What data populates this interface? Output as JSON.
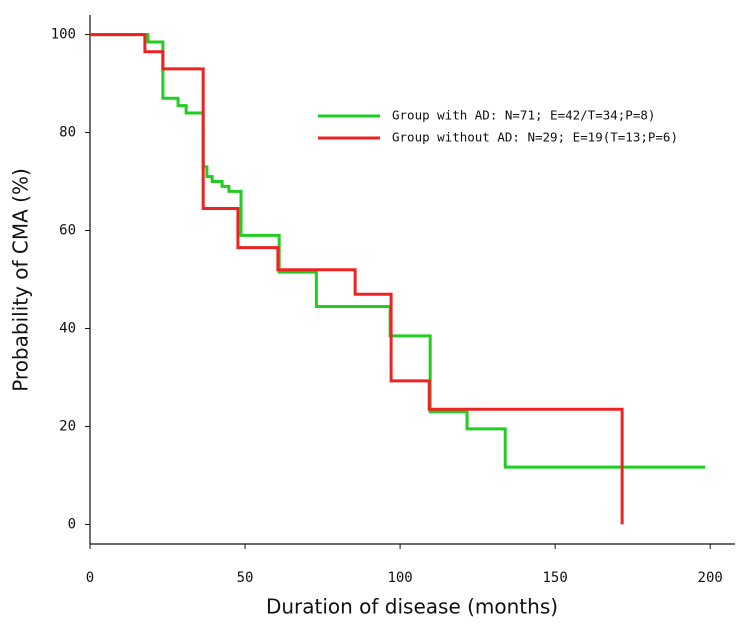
{
  "chart_data": {
    "type": "line",
    "step": "post",
    "xlabel": "Duration of disease (months)",
    "ylabel": "Probability of CMA (%)",
    "xlim": [
      0,
      208
    ],
    "ylim": [
      -4,
      104
    ],
    "xticks": [
      0,
      50,
      100,
      150,
      200
    ],
    "yticks": [
      0,
      20,
      40,
      60,
      80,
      100
    ],
    "legend": "upper right",
    "series": [
      {
        "name": "Group with AD: N=71; E=42/T=34;P=8)",
        "color": "#22cc22",
        "x": [
          0,
          18.7,
          23.5,
          28.4,
          31,
          36.5,
          37.7,
          39.4,
          42.6,
          44.8,
          48.7,
          61,
          73,
          96.8,
          109.7,
          121.6,
          133.9,
          198.4
        ],
        "values": [
          100,
          98.5,
          87,
          85.5,
          84,
          73,
          71,
          70,
          69,
          68,
          59,
          51.5,
          44.5,
          38.5,
          23,
          19.5,
          11.7,
          11.7
        ]
      },
      {
        "name": "Group without AD: N=29; E=19(T=13;P=6)",
        "color": "#ee2222",
        "x": [
          0,
          17.7,
          23.5,
          36.5,
          47.7,
          60.6,
          85.5,
          97.1,
          109.4,
          171.6
        ],
        "values": [
          100,
          96.5,
          93,
          64.5,
          56.5,
          52,
          47,
          29.3,
          23.5,
          0
        ]
      }
    ]
  }
}
